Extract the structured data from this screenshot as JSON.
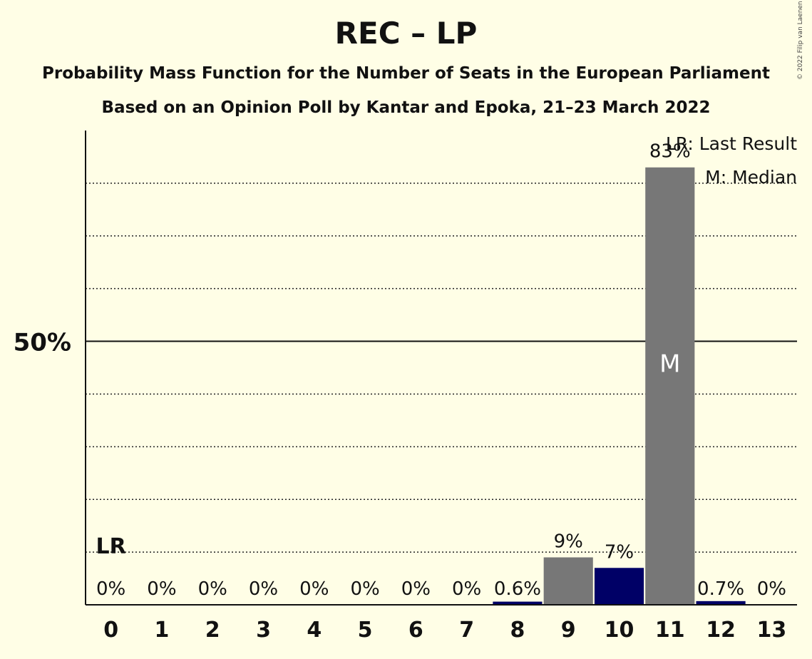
{
  "chart_data": {
    "type": "bar",
    "title": "REC – LP",
    "subtitle": "Probability Mass Function for the Number of Seats in the European Parliament",
    "subtitle2": "Based on an Opinion Poll by Kantar and Epoka, 21–23 March 2022",
    "copyright": "© 2022 Filip van Laenen",
    "categories": [
      "0",
      "1",
      "2",
      "3",
      "4",
      "5",
      "6",
      "7",
      "8",
      "9",
      "10",
      "11",
      "12",
      "13"
    ],
    "values": [
      0,
      0,
      0,
      0,
      0,
      0,
      0,
      0,
      0.6,
      9,
      7,
      83,
      0.7,
      0
    ],
    "value_labels": [
      "0%",
      "0%",
      "0%",
      "0%",
      "0%",
      "0%",
      "0%",
      "0%",
      "0.6%",
      "9%",
      "7%",
      "83%",
      "0.7%",
      "0%"
    ],
    "bar_colors": [
      "#000066",
      "#000066",
      "#000066",
      "#000066",
      "#000066",
      "#000066",
      "#000066",
      "#000066",
      "#000066",
      "#777777",
      "#000066",
      "#777777",
      "#000066",
      "#000066"
    ],
    "ylim": [
      0,
      90
    ],
    "y_tick_label": "50%",
    "y_tick_value": 50,
    "gridlines": [
      10,
      20,
      30,
      40,
      60,
      70,
      80
    ],
    "median_index": 11,
    "median_marker": "M",
    "last_result_index": 0,
    "last_result_marker": "LR",
    "legend": [
      "LR: Last Result",
      "M: Median"
    ],
    "legend_position": "top-right",
    "colors": {
      "background": "#FFFEE6",
      "primary": "#000066",
      "median": "#777777"
    }
  }
}
